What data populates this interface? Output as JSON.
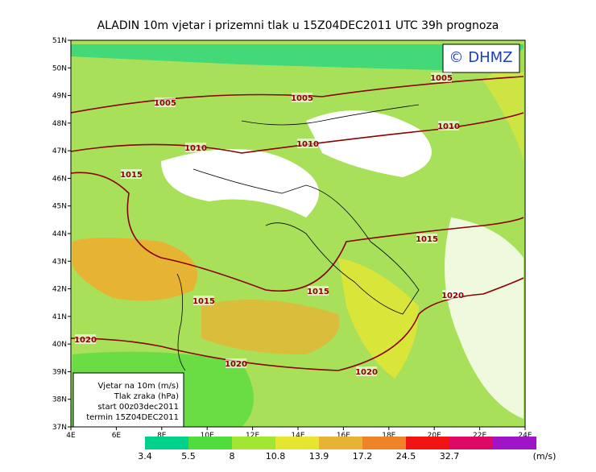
{
  "title": "ALADIN  10m  vjetar  i  prizemni  tlak  u  15Z04DEC2011  UTC  39h  prognoza",
  "logo": "© DHMZ",
  "lat_labels": [
    "51N",
    "50N",
    "49N",
    "48N",
    "47N",
    "46N",
    "45N",
    "44N",
    "43N",
    "42N",
    "41N",
    "40N",
    "39N",
    "38N",
    "37N"
  ],
  "lon_labels": [
    "4E",
    "6E",
    "8E",
    "10E",
    "12E",
    "14E",
    "16E",
    "18E",
    "20E",
    "22E",
    "24E"
  ],
  "isobars": [
    "1005",
    "1005",
    "1005",
    "1010",
    "1010",
    "1010",
    "1015",
    "1015",
    "1015",
    "1015",
    "1020",
    "1020",
    "1020",
    "1020"
  ],
  "info": [
    "Vjetar na 10m (m/s)",
    "Tlak zraka (hPa)",
    "start  00z03dec2011",
    "termin  15Z04DEC2011"
  ],
  "colorbar": {
    "labels": [
      "3.4",
      "5.5",
      "8",
      "10.8",
      "13.9",
      "17.2",
      "24.5",
      "32.7"
    ],
    "unit": "(m/s)",
    "colors": [
      "#00d28c",
      "#50dc3c",
      "#a0e632",
      "#e6e632",
      "#e6b432",
      "#f08228",
      "#f01414",
      "#dc0a64",
      "#a014c8"
    ]
  }
}
